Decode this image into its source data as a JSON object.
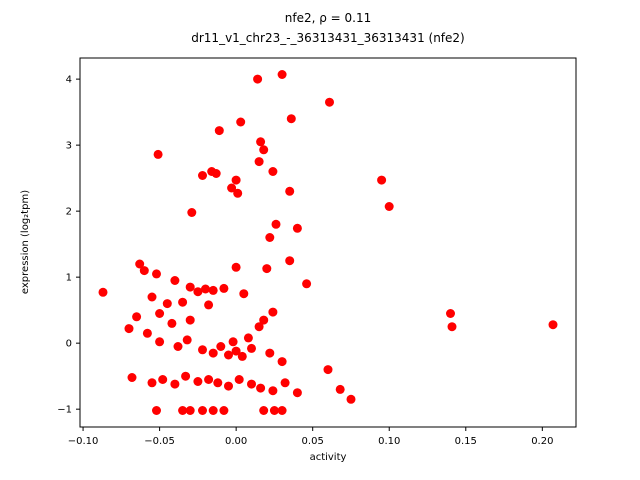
{
  "figure": {
    "title_line1": "nfe2, ρ = 0.11",
    "title_line2": "dr11_v1_chr23_-_36313431_36313431 (nfe2)"
  },
  "chart_data": {
    "type": "scatter",
    "title": "nfe2, ρ = 0.11",
    "subtitle": "dr11_v1_chr23_-_36313431_36313431 (nfe2)",
    "xlabel": "activity",
    "ylabel": "expression (log₂tpm)",
    "xlim": [
      -0.102,
      0.222
    ],
    "ylim": [
      -1.27,
      4.32
    ],
    "x_ticks": [
      -0.1,
      -0.05,
      0.0,
      0.05,
      0.1,
      0.15,
      0.2
    ],
    "x_tick_labels": [
      "−0.10",
      "−0.05",
      "0.00",
      "0.05",
      "0.10",
      "0.15",
      "0.20"
    ],
    "y_ticks": [
      -1,
      0,
      1,
      2,
      3,
      4
    ],
    "y_tick_labels": [
      "−1",
      "0",
      "1",
      "2",
      "3",
      "4"
    ],
    "grid": false,
    "legend": null,
    "marker_color": "#ff0000",
    "marker_radius": 4.5,
    "points": [
      [
        0.03,
        4.07
      ],
      [
        0.014,
        4.0
      ],
      [
        0.061,
        3.65
      ],
      [
        0.036,
        3.4
      ],
      [
        0.003,
        3.35
      ],
      [
        -0.011,
        3.22
      ],
      [
        0.016,
        3.05
      ],
      [
        0.018,
        2.93
      ],
      [
        -0.051,
        2.86
      ],
      [
        0.015,
        2.75
      ],
      [
        0.024,
        2.6
      ],
      [
        -0.016,
        2.6
      ],
      [
        -0.013,
        2.57
      ],
      [
        -0.022,
        2.54
      ],
      [
        0.0,
        2.47
      ],
      [
        0.095,
        2.47
      ],
      [
        -0.003,
        2.35
      ],
      [
        0.035,
        2.3
      ],
      [
        0.001,
        2.27
      ],
      [
        0.1,
        2.07
      ],
      [
        -0.029,
        1.98
      ],
      [
        0.026,
        1.8
      ],
      [
        0.04,
        1.74
      ],
      [
        0.022,
        1.6
      ],
      [
        0.035,
        1.25
      ],
      [
        -0.063,
        1.2
      ],
      [
        -0.06,
        1.1
      ],
      [
        -0.052,
        1.05
      ],
      [
        0.0,
        1.15
      ],
      [
        0.02,
        1.13
      ],
      [
        -0.04,
        0.95
      ],
      [
        0.046,
        0.9
      ],
      [
        -0.087,
        0.77
      ],
      [
        -0.03,
        0.85
      ],
      [
        -0.02,
        0.82
      ],
      [
        -0.015,
        0.8
      ],
      [
        -0.008,
        0.83
      ],
      [
        -0.025,
        0.78
      ],
      [
        0.005,
        0.75
      ],
      [
        -0.055,
        0.7
      ],
      [
        -0.035,
        0.62
      ],
      [
        -0.045,
        0.6
      ],
      [
        -0.018,
        0.58
      ],
      [
        -0.065,
        0.4
      ],
      [
        -0.05,
        0.45
      ],
      [
        0.14,
        0.45
      ],
      [
        0.141,
        0.25
      ],
      [
        0.207,
        0.28
      ],
      [
        0.024,
        0.47
      ],
      [
        -0.07,
        0.22
      ],
      [
        -0.058,
        0.15
      ],
      [
        -0.042,
        0.3
      ],
      [
        -0.03,
        0.35
      ],
      [
        0.018,
        0.35
      ],
      [
        0.015,
        0.25
      ],
      [
        -0.05,
        0.02
      ],
      [
        -0.038,
        -0.05
      ],
      [
        -0.032,
        0.05
      ],
      [
        -0.022,
        -0.1
      ],
      [
        -0.015,
        -0.15
      ],
      [
        -0.01,
        -0.05
      ],
      [
        -0.005,
        -0.18
      ],
      [
        0.0,
        -0.12
      ],
      [
        0.004,
        -0.2
      ],
      [
        0.01,
        -0.08
      ],
      [
        0.022,
        -0.15
      ],
      [
        0.03,
        -0.28
      ],
      [
        0.008,
        0.08
      ],
      [
        -0.002,
        0.02
      ],
      [
        -0.068,
        -0.52
      ],
      [
        -0.055,
        -0.6
      ],
      [
        -0.048,
        -0.55
      ],
      [
        -0.04,
        -0.62
      ],
      [
        -0.033,
        -0.5
      ],
      [
        -0.025,
        -0.58
      ],
      [
        -0.018,
        -0.55
      ],
      [
        -0.012,
        -0.6
      ],
      [
        -0.005,
        -0.65
      ],
      [
        0.002,
        -0.55
      ],
      [
        0.01,
        -0.62
      ],
      [
        0.016,
        -0.68
      ],
      [
        0.024,
        -0.72
      ],
      [
        0.032,
        -0.6
      ],
      [
        0.04,
        -0.75
      ],
      [
        0.06,
        -0.4
      ],
      [
        0.068,
        -0.7
      ],
      [
        0.075,
        -0.85
      ],
      [
        -0.052,
        -1.02
      ],
      [
        -0.035,
        -1.02
      ],
      [
        -0.03,
        -1.02
      ],
      [
        -0.022,
        -1.02
      ],
      [
        -0.015,
        -1.02
      ],
      [
        -0.008,
        -1.02
      ],
      [
        0.018,
        -1.02
      ],
      [
        0.025,
        -1.02
      ],
      [
        0.03,
        -1.02
      ]
    ]
  }
}
